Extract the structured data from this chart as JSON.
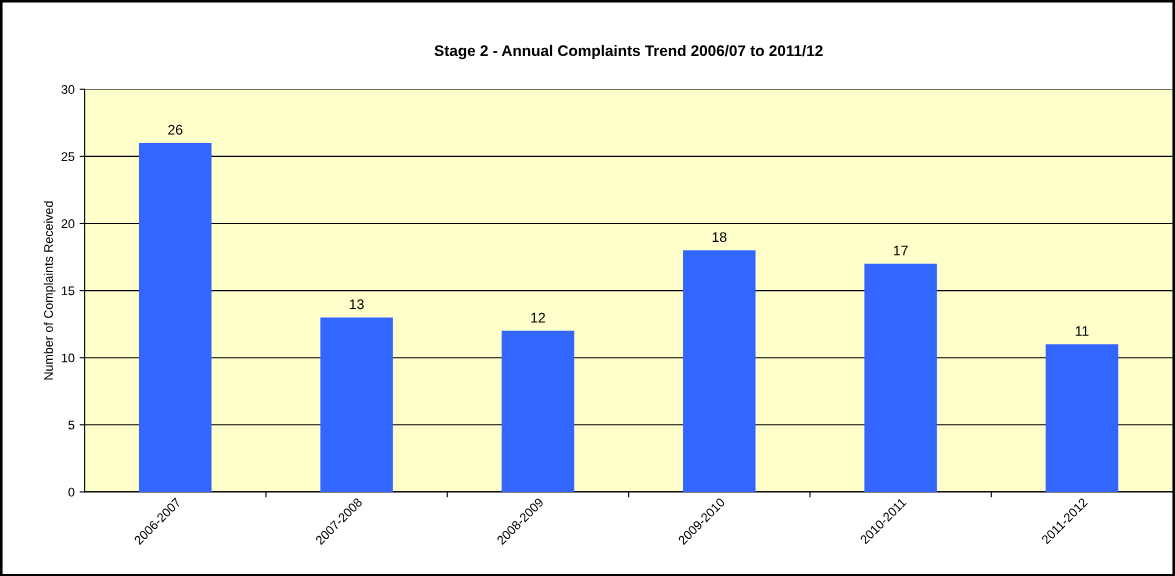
{
  "chart_data": {
    "type": "bar",
    "title": "Stage 2 - Annual Complaints Trend 2006/07 to 2011/12",
    "ylabel": "Number of Complaints Received",
    "categories": [
      "2006-2007",
      "2007-2008",
      "2008-2009",
      "2009-2010",
      "2010-2011",
      "2011-2012"
    ],
    "values": [
      26,
      13,
      12,
      18,
      17,
      11
    ],
    "color": "#3366ff",
    "ylim": [
      0,
      30
    ],
    "yticks": [
      0,
      5,
      10,
      15,
      20,
      25,
      30
    ],
    "grid": "y",
    "data_labels": true
  }
}
